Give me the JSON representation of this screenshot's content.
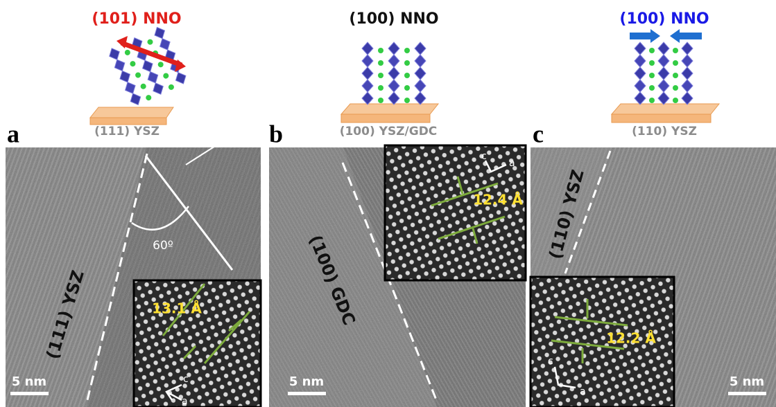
{
  "panels": [
    {
      "letter": "a",
      "film": "(101) NNO",
      "substrate": "(111) YSZ",
      "interface": "(111) YSZ",
      "angle": "60º",
      "spacing": "13.1 Å",
      "axes": [
        "c",
        "a"
      ],
      "scale_bar": "5 nm"
    },
    {
      "letter": "b",
      "film": "(100) NNO",
      "substrate": "(100) YSZ/GDC",
      "interface": "(100) GDC",
      "spacing": "12.4 Å",
      "axes": [
        "c",
        "a"
      ],
      "scale_bar": "5 nm"
    },
    {
      "letter": "c",
      "film": "(100) NNO",
      "substrate": "(110) YSZ",
      "interface": "(110) YSZ",
      "spacing": "12.2 Å",
      "axes": [
        "c",
        "a"
      ],
      "scale_bar": "5 nm"
    }
  ]
}
